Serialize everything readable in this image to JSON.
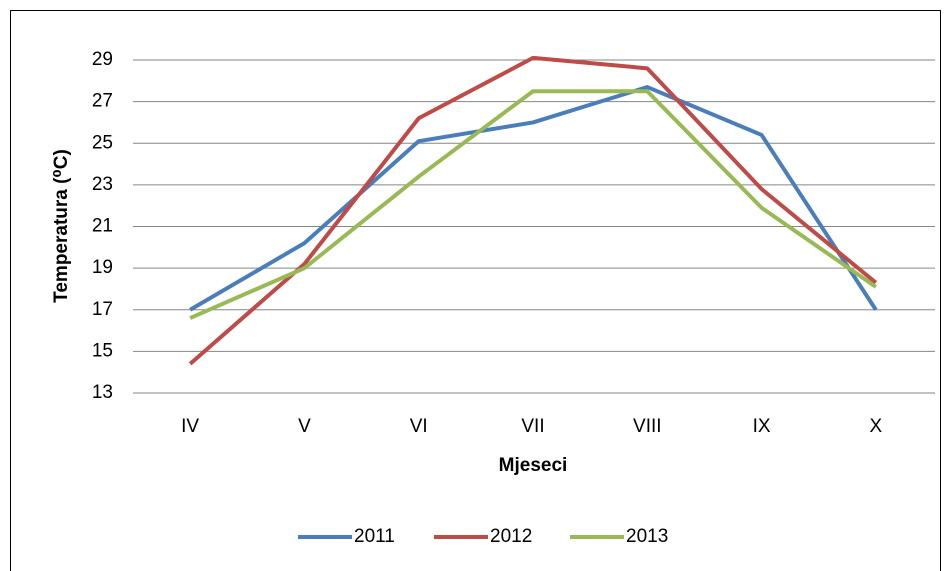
{
  "chart_data": {
    "type": "line",
    "categories": [
      "IV",
      "V",
      "VI",
      "VII",
      "VIII",
      "IX",
      "X"
    ],
    "series": [
      {
        "name": "2011",
        "color": "#4a7ebb",
        "values": [
          17.0,
          20.2,
          25.1,
          26.0,
          27.7,
          25.4,
          17.0
        ]
      },
      {
        "name": "2012",
        "color": "#be4b48",
        "values": [
          14.4,
          19.2,
          26.2,
          29.1,
          28.6,
          22.8,
          18.3
        ]
      },
      {
        "name": "2013",
        "color": "#98b954",
        "values": [
          16.6,
          19.0,
          23.4,
          27.5,
          27.5,
          21.9,
          18.1
        ]
      }
    ],
    "x_label": "Mjeseci",
    "y_label": "Temperatura (⁰C)",
    "ylim": [
      13,
      29
    ],
    "yticks": [
      13,
      15,
      17,
      19,
      21,
      23,
      25,
      27,
      29
    ],
    "grid": true,
    "legend": "bottom"
  }
}
